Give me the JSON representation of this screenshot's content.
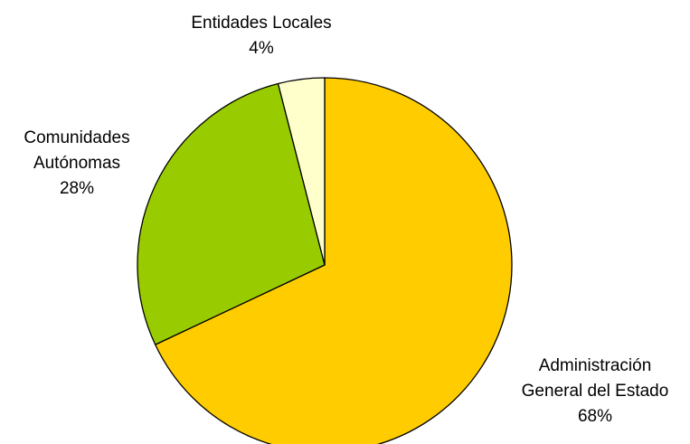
{
  "chart_data": {
    "type": "pie",
    "title": "",
    "start_angle_deg": 0,
    "direction": "clockwise",
    "slices": [
      {
        "label_lines": [
          "Administración",
          "General del Estado"
        ],
        "value": 68,
        "value_label": "68%",
        "color": "#FFCC00"
      },
      {
        "label_lines": [
          "Comunidades",
          "Autónomas"
        ],
        "value": 28,
        "value_label": "28%",
        "color": "#99CC00"
      },
      {
        "label_lines": [
          "Entidades Locales"
        ],
        "value": 4,
        "value_label": "4%",
        "color": "#FFFFCC"
      }
    ],
    "legend": "none",
    "border_color": "#000000"
  }
}
